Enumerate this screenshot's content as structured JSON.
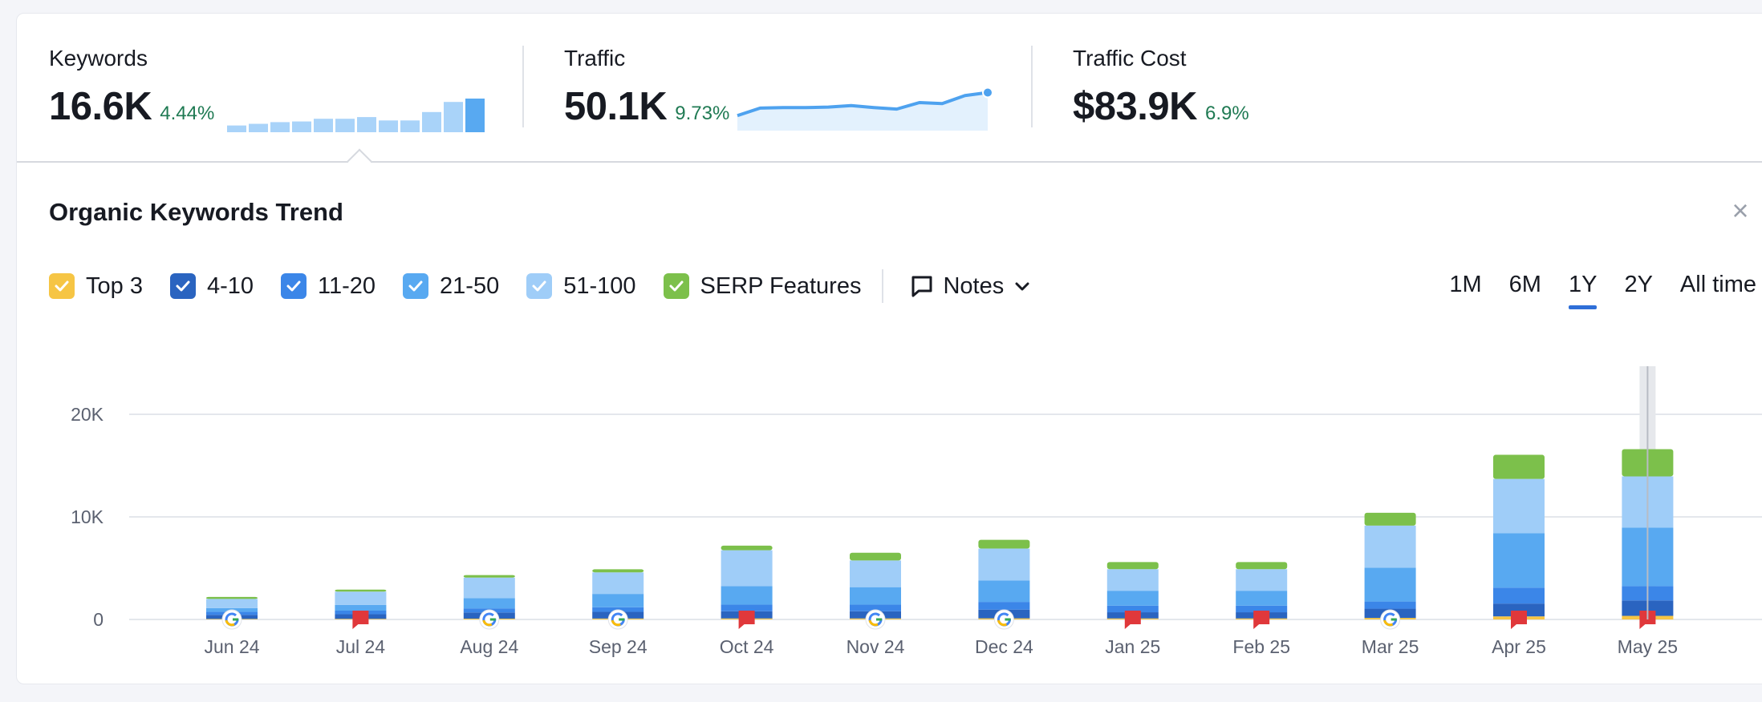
{
  "metrics": {
    "keywords": {
      "label": "Keywords",
      "value": "16.6K",
      "delta": "4.44%"
    },
    "traffic": {
      "label": "Traffic",
      "value": "50.1K",
      "delta": "9.73%"
    },
    "traffic_cost": {
      "label": "Traffic Cost",
      "value": "$83.9K",
      "delta": "6.9%"
    }
  },
  "panel": {
    "title": "Organic Keywords Trend",
    "close_label": "×"
  },
  "legend": [
    {
      "label": "Top 3",
      "color": "#f6c544"
    },
    {
      "label": "4-10",
      "color": "#2a64c0"
    },
    {
      "label": "11-20",
      "color": "#3b86e8"
    },
    {
      "label": "21-50",
      "color": "#58a9f1"
    },
    {
      "label": "51-100",
      "color": "#9fcdf8"
    },
    {
      "label": "SERP Features",
      "color": "#7cc04b"
    }
  ],
  "notes": {
    "label": "Notes"
  },
  "ranges": [
    "1M",
    "6M",
    "1Y",
    "2Y",
    "All time"
  ],
  "active_range": "1Y",
  "chart_data": {
    "type": "bar",
    "stacked": true,
    "categories": [
      "Jun 24",
      "Jul 24",
      "Aug 24",
      "Sep 24",
      "Oct 24",
      "Nov 24",
      "Dec 24",
      "Jan 25",
      "Feb 25",
      "Mar 25",
      "Apr 25",
      "May 25"
    ],
    "series": [
      {
        "name": "Top 3",
        "values": [
          50,
          60,
          80,
          90,
          100,
          100,
          110,
          100,
          100,
          150,
          300,
          350
        ]
      },
      {
        "name": "4-10",
        "values": [
          400,
          450,
          600,
          650,
          700,
          700,
          850,
          600,
          600,
          900,
          1250,
          1500
        ]
      },
      {
        "name": "11-20",
        "values": [
          300,
          350,
          400,
          450,
          650,
          650,
          750,
          650,
          650,
          700,
          1550,
          1400
        ]
      },
      {
        "name": "21-50",
        "values": [
          350,
          550,
          1000,
          1300,
          1800,
          1700,
          2100,
          1450,
          1450,
          3300,
          5300,
          5700
        ]
      },
      {
        "name": "51-100",
        "values": [
          900,
          1300,
          2000,
          2100,
          3500,
          2600,
          3100,
          2100,
          2100,
          4100,
          5300,
          5000
        ]
      },
      {
        "name": "SERP Features",
        "values": [
          200,
          200,
          250,
          300,
          450,
          750,
          850,
          700,
          700,
          1250,
          2350,
          2650
        ]
      }
    ],
    "markers": [
      "google",
      "note",
      "google",
      "google",
      "note",
      "google",
      "google",
      "note",
      "note",
      "google",
      "note",
      "note"
    ],
    "highlighted_category": "May 25",
    "yticks": [
      0,
      10000,
      20000
    ],
    "ytick_labels": [
      "0",
      "10K",
      "20K"
    ],
    "ylim": [
      0,
      25000
    ],
    "title": "Organic Keywords Trend",
    "xlabel": "",
    "ylabel": ""
  },
  "sparklines": {
    "keywords_bars": [
      2,
      2.5,
      3,
      3.2,
      4,
      4,
      4.5,
      3.5,
      3.5,
      6,
      9,
      10
    ],
    "traffic_line": [
      3,
      4.5,
      4.6,
      4.6,
      4.7,
      5,
      4.6,
      4.3,
      5.6,
      5.4,
      7,
      7.6
    ]
  }
}
